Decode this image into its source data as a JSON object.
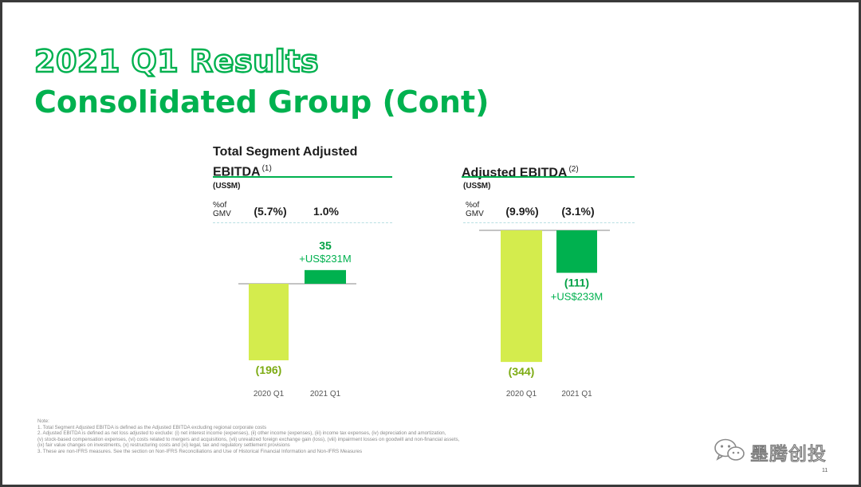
{
  "slide": {
    "title_line1": "2021 Q1 Results",
    "title_line2": "Consolidated Group (Cont)",
    "page_number": "11",
    "watermark_text": "墨腾创投",
    "watermark_icon": "wechat-icon",
    "accent_color": "#00b14f",
    "light_bar_color": "#d4ec4d",
    "dark_bar_color": "#00b14f"
  },
  "panels": [
    {
      "title": "Total Segment Adjusted EBITDA",
      "footnote_ref": "(1)",
      "unit": "(US$M)",
      "gmv_label": "%of GMV",
      "gmv_values": [
        "(5.7%)",
        "1.0%"
      ],
      "bar_labels": [
        "(196)",
        "35"
      ],
      "delta_label": "+US$231M"
    },
    {
      "title": "Adjusted EBITDA",
      "footnote_ref": "(2)",
      "unit": "(US$M)",
      "gmv_label": "%of GMV",
      "gmv_values": [
        "(9.9%)",
        "(3.1%)"
      ],
      "bar_labels": [
        "(344)",
        "(111)"
      ],
      "delta_label": "+US$233M"
    }
  ],
  "chart_data": [
    {
      "type": "bar",
      "title": "Total Segment Adjusted EBITDA",
      "ylabel": "US$M",
      "categories": [
        "2020 Q1",
        "2021 Q1"
      ],
      "values": [
        -196,
        35
      ],
      "percent_of_gmv": [
        "(5.7%)",
        "1.0%"
      ],
      "annotation": "+US$231M"
    },
    {
      "type": "bar",
      "title": "Adjusted EBITDA",
      "ylabel": "US$M",
      "categories": [
        "2020 Q1",
        "2021 Q1"
      ],
      "values": [
        -344,
        -111
      ],
      "percent_of_gmv": [
        "(9.9%)",
        "(3.1%)"
      ],
      "annotation": "+US$233M"
    }
  ],
  "notes": [
    "Note:",
    "1. Total Segment Adjusted EBITDA is defined as the Adjusted EBITDA excluding regional corporate costs",
    "2. Adjusted EBITDA is defined as net loss adjusted to exclude: (i) net interest income (expenses), (ii) other income (expenses), (iii) income tax expenses, (iv) depreciation and amortization,",
    "   (v) stock-based compensation expenses, (vi) costs related to mergers and acquisitions, (vii) unrealized foreign exchange gain (loss), (viii) impairment losses on goodwill and non-financial assets,",
    "   (ix) fair value changes on investments, (x) restructuring costs and (xi) legal, tax and regulatory settlement provisions",
    "3. These are non-IFRS measures. See the section on Non-IFRS Reconciliations and Use of Historical Financial Information and Non-IFRS Measures"
  ]
}
